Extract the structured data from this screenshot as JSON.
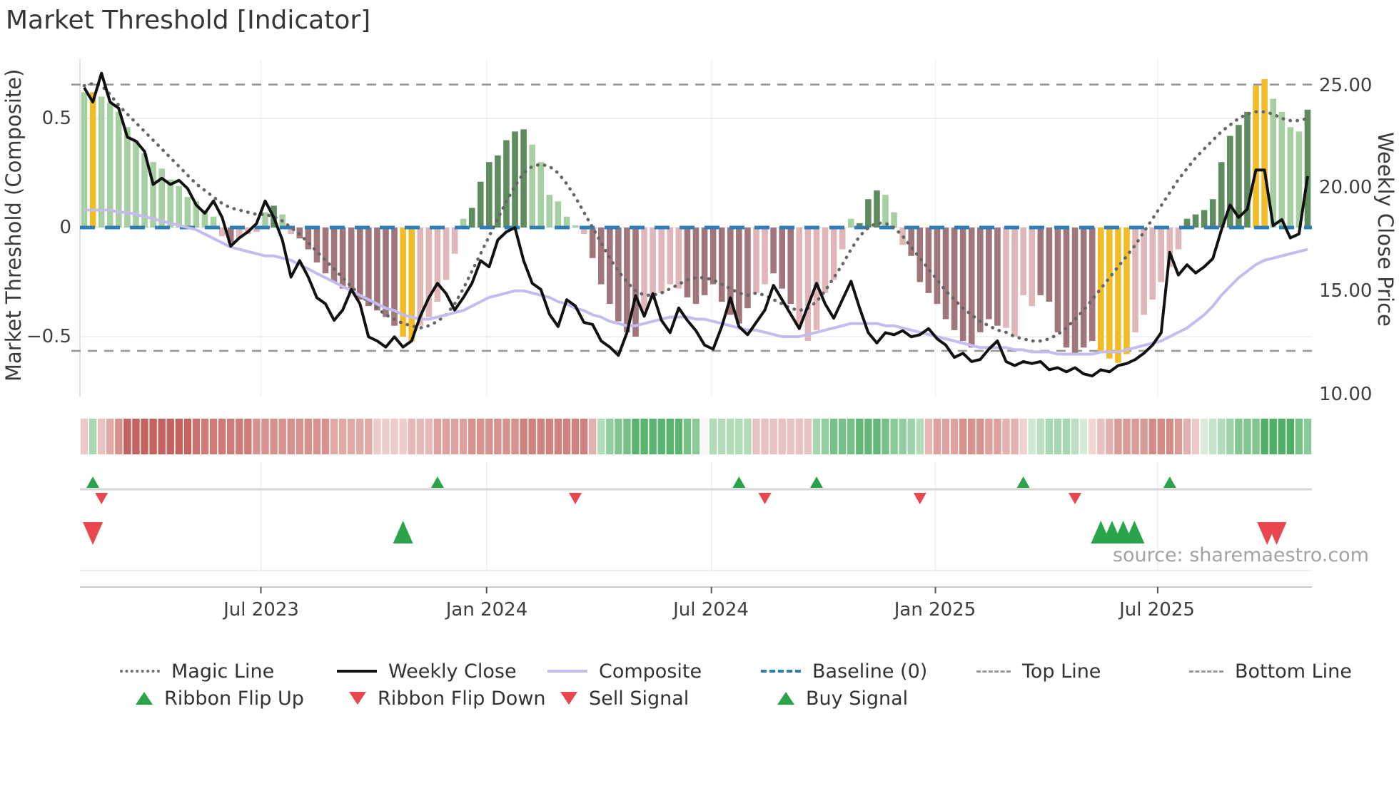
{
  "title": "Market Threshold [Indicator]",
  "source_note": "source: sharemaestro.com",
  "axes": {
    "left_label": "Market Threshold (Composite)",
    "right_label": "Weekly Close Price",
    "left_ticks": [
      "0.5",
      "0",
      "−0.5"
    ],
    "right_ticks": [
      "25.00",
      "20.00",
      "15.00",
      "10.00"
    ],
    "x_ticks": [
      "Jul 2023",
      "Jan 2024",
      "Jul 2024",
      "Jan 2025",
      "Jul 2025"
    ]
  },
  "legend": {
    "row1": [
      {
        "label": "Magic Line"
      },
      {
        "label": "Weekly Close"
      },
      {
        "label": "Composite"
      },
      {
        "label": "Baseline (0)"
      },
      {
        "label": "Top Line"
      },
      {
        "label": "Bottom Line"
      }
    ],
    "row2": [
      {
        "label": "Ribbon Flip Up"
      },
      {
        "label": "Ribbon Flip Down"
      },
      {
        "label": "Sell Signal"
      },
      {
        "label": "Buy Signal"
      }
    ]
  },
  "chart_data": {
    "type": "bar",
    "n_weeks": 143,
    "x_tick_labels": [
      "Jul 2023",
      "Jan 2024",
      "Jul 2024",
      "Jan 2025",
      "Jul 2025"
    ],
    "x_tick_weeks": [
      20.5,
      46.7,
      72.8,
      98.8,
      124.6
    ],
    "left_tick_values": [
      0.5,
      0,
      -0.5
    ],
    "right_tick_values": [
      25,
      20,
      15,
      10
    ],
    "baseline": 0,
    "top_line": 0.655,
    "bottom_line": -0.565,
    "palette": {
      "lg": "#a7d0a2",
      "dg": "#5e8c5e",
      "y": "#f0bd28",
      "lp": "#e1b6b8",
      "mv": "#a1767b",
      "magic_line": "#666666",
      "weekly_close": "#111111",
      "composite": "#c4bcee",
      "baseline": "#2e7eb8",
      "top_bottom_line": "#999999",
      "signal_green": "#2aa34b",
      "signal_red": "#e84750"
    },
    "bar_values": [
      0.62,
      0.62,
      0.6,
      0.57,
      0.53,
      0.46,
      0.4,
      0.34,
      0.3,
      0.27,
      0.22,
      0.19,
      0.14,
      0.12,
      0.08,
      0.05,
      -0.04,
      -0.07,
      -0.05,
      -0.03,
      -0.02,
      0.07,
      0.1,
      0.06,
      -0.03,
      -0.05,
      -0.1,
      -0.16,
      -0.21,
      -0.25,
      -0.28,
      -0.3,
      -0.33,
      -0.36,
      -0.38,
      -0.41,
      -0.45,
      -0.5,
      -0.52,
      -0.45,
      -0.41,
      -0.34,
      -0.24,
      -0.12,
      0.04,
      0.09,
      0.21,
      0.3,
      0.33,
      0.4,
      0.44,
      0.45,
      0.38,
      0.3,
      0.15,
      0.12,
      0.05,
      0.01,
      -0.03,
      -0.14,
      -0.26,
      -0.35,
      -0.43,
      -0.48,
      -0.5,
      -0.38,
      -0.33,
      -0.3,
      -0.26,
      -0.28,
      -0.32,
      -0.35,
      -0.31,
      -0.26,
      -0.34,
      -0.4,
      -0.44,
      -0.37,
      -0.3,
      -0.26,
      -0.21,
      -0.28,
      -0.35,
      -0.45,
      -0.52,
      -0.47,
      -0.3,
      -0.24,
      -0.1,
      0.04,
      0.02,
      0.13,
      0.17,
      0.15,
      0.07,
      -0.08,
      -0.13,
      -0.25,
      -0.3,
      -0.35,
      -0.42,
      -0.47,
      -0.52,
      -0.55,
      -0.48,
      -0.42,
      -0.45,
      -0.46,
      -0.5,
      -0.31,
      -0.36,
      -0.31,
      -0.34,
      -0.48,
      -0.55,
      -0.58,
      -0.55,
      -0.52,
      -0.57,
      -0.6,
      -0.62,
      -0.58,
      -0.48,
      -0.4,
      -0.33,
      -0.25,
      -0.18,
      -0.1,
      0.04,
      0.06,
      0.08,
      0.13,
      0.3,
      0.42,
      0.47,
      0.53,
      0.65,
      0.68,
      0.59,
      0.53,
      0.46,
      0.44,
      0.54
    ],
    "bar_colors": [
      "lg",
      "y",
      "lg",
      "lg",
      "lg",
      "lg",
      "lg",
      "lg",
      "lg",
      "lg",
      "lg",
      "lg",
      "lg",
      "lg",
      "lg",
      "lg",
      "lp",
      "mv",
      "lp",
      "lp",
      "lp",
      "lg",
      "dg",
      "lg",
      "lp",
      "mv",
      "mv",
      "mv",
      "mv",
      "mv",
      "mv",
      "mv",
      "mv",
      "mv",
      "mv",
      "mv",
      "mv",
      "y",
      "y",
      "lp",
      "lp",
      "lp",
      "lp",
      "lp",
      "lg",
      "dg",
      "dg",
      "dg",
      "dg",
      "dg",
      "dg",
      "dg",
      "lg",
      "lg",
      "lg",
      "lg",
      "lg",
      "lg",
      "lp",
      "mv",
      "mv",
      "mv",
      "mv",
      "mv",
      "mv",
      "lp",
      "lp",
      "lp",
      "lp",
      "lp",
      "mv",
      "mv",
      "mv",
      "mv",
      "mv",
      "mv",
      "mv",
      "mv",
      "lp",
      "lp",
      "mv",
      "mv",
      "mv",
      "lp",
      "lp",
      "lp",
      "lp",
      "lp",
      "lp",
      "lg",
      "dg",
      "dg",
      "dg",
      "lg",
      "lg",
      "lp",
      "mv",
      "mv",
      "mv",
      "mv",
      "mv",
      "mv",
      "mv",
      "mv",
      "mv",
      "mv",
      "mv",
      "lp",
      "lp",
      "lp",
      "lp",
      "mv",
      "mv",
      "mv",
      "mv",
      "mv",
      "mv",
      "mv",
      "y",
      "y",
      "y",
      "y",
      "lp",
      "lp",
      "lp",
      "lp",
      "lp",
      "lp",
      "dg",
      "dg",
      "dg",
      "dg",
      "dg",
      "dg",
      "dg",
      "dg",
      "y",
      "y",
      "lg",
      "lg",
      "lg",
      "lg",
      "dg"
    ],
    "weekly_close": [
      24.9,
      24.2,
      25.6,
      24.2,
      23.9,
      22.5,
      22.3,
      21.8,
      20.2,
      20.5,
      20.2,
      20.4,
      20.0,
      19.2,
      18.8,
      19.4,
      18.6,
      17.2,
      17.6,
      17.9,
      18.3,
      19.4,
      18.6,
      17.5,
      15.7,
      16.5,
      15.7,
      14.7,
      14.4,
      13.6,
      14.1,
      15.1,
      14.4,
      12.8,
      12.6,
      12.3,
      12.8,
      12.3,
      12.6,
      13.8,
      14.7,
      15.4,
      14.9,
      14.1,
      14.7,
      15.4,
      16.5,
      16.2,
      17.5,
      17.9,
      18.1,
      16.5,
      15.4,
      15.1,
      13.9,
      13.3,
      14.6,
      14.3,
      13.5,
      13.4,
      12.6,
      12.3,
      11.9,
      13.0,
      14.8,
      13.8,
      14.9,
      13.6,
      13.0,
      14.2,
      13.6,
      13.1,
      12.4,
      12.2,
      13.3,
      14.7,
      13.3,
      12.9,
      13.5,
      14.1,
      15.3,
      14.6,
      13.9,
      13.2,
      14.3,
      15.4,
      14.4,
      13.7,
      14.6,
      15.5,
      14.2,
      13.0,
      12.5,
      13.0,
      12.9,
      13.1,
      12.8,
      12.9,
      13.2,
      12.7,
      12.4,
      11.8,
      12.0,
      11.6,
      11.7,
      12.2,
      12.6,
      11.6,
      11.4,
      11.6,
      11.5,
      11.6,
      11.2,
      11.3,
      11.1,
      11.3,
      11.0,
      10.9,
      11.2,
      11.1,
      11.4,
      11.5,
      11.7,
      12.0,
      12.4,
      13.0,
      16.9,
      15.8,
      16.3,
      15.9,
      16.2,
      16.6,
      18.0,
      19.2,
      18.6,
      19.0,
      20.9,
      20.9,
      18.2,
      18.5,
      17.6,
      17.8,
      20.6
    ],
    "composite": [
      0.08,
      0.08,
      0.08,
      0.08,
      0.07,
      0.07,
      0.06,
      0.05,
      0.04,
      0.03,
      0.02,
      0.01,
      0.0,
      -0.01,
      -0.03,
      -0.05,
      -0.07,
      -0.09,
      -0.1,
      -0.11,
      -0.12,
      -0.13,
      -0.13,
      -0.14,
      -0.15,
      -0.17,
      -0.19,
      -0.21,
      -0.23,
      -0.25,
      -0.27,
      -0.29,
      -0.31,
      -0.33,
      -0.35,
      -0.37,
      -0.38,
      -0.4,
      -0.41,
      -0.42,
      -0.42,
      -0.41,
      -0.4,
      -0.39,
      -0.38,
      -0.36,
      -0.34,
      -0.32,
      -0.31,
      -0.3,
      -0.29,
      -0.29,
      -0.3,
      -0.31,
      -0.32,
      -0.34,
      -0.35,
      -0.37,
      -0.38,
      -0.4,
      -0.41,
      -0.43,
      -0.44,
      -0.45,
      -0.45,
      -0.44,
      -0.43,
      -0.42,
      -0.41,
      -0.41,
      -0.41,
      -0.42,
      -0.42,
      -0.43,
      -0.44,
      -0.45,
      -0.46,
      -0.47,
      -0.47,
      -0.48,
      -0.49,
      -0.5,
      -0.5,
      -0.5,
      -0.49,
      -0.48,
      -0.47,
      -0.46,
      -0.45,
      -0.44,
      -0.44,
      -0.44,
      -0.44,
      -0.45,
      -0.45,
      -0.46,
      -0.47,
      -0.48,
      -0.49,
      -0.5,
      -0.51,
      -0.52,
      -0.53,
      -0.54,
      -0.55,
      -0.55,
      -0.55,
      -0.55,
      -0.56,
      -0.56,
      -0.57,
      -0.57,
      -0.57,
      -0.58,
      -0.58,
      -0.58,
      -0.58,
      -0.58,
      -0.57,
      -0.57,
      -0.57,
      -0.56,
      -0.55,
      -0.54,
      -0.53,
      -0.52,
      -0.5,
      -0.48,
      -0.46,
      -0.43,
      -0.4,
      -0.36,
      -0.31,
      -0.27,
      -0.23,
      -0.2,
      -0.17,
      -0.15,
      -0.14,
      -0.13,
      -0.12,
      -0.11,
      -0.1
    ],
    "magic_line": [
      0.65,
      0.66,
      0.65,
      0.61,
      0.56,
      0.52,
      0.48,
      0.44,
      0.4,
      0.36,
      0.32,
      0.28,
      0.24,
      0.2,
      0.17,
      0.14,
      0.11,
      0.09,
      0.08,
      0.07,
      0.06,
      0.06,
      0.05,
      0.03,
      0.0,
      -0.03,
      -0.07,
      -0.11,
      -0.15,
      -0.19,
      -0.23,
      -0.27,
      -0.31,
      -0.34,
      -0.37,
      -0.4,
      -0.42,
      -0.44,
      -0.45,
      -0.46,
      -0.45,
      -0.43,
      -0.4,
      -0.35,
      -0.28,
      -0.2,
      -0.12,
      -0.04,
      0.04,
      0.12,
      0.19,
      0.25,
      0.28,
      0.29,
      0.28,
      0.25,
      0.2,
      0.14,
      0.07,
      0.0,
      -0.07,
      -0.14,
      -0.2,
      -0.25,
      -0.29,
      -0.31,
      -0.31,
      -0.3,
      -0.28,
      -0.26,
      -0.24,
      -0.23,
      -0.23,
      -0.24,
      -0.26,
      -0.28,
      -0.3,
      -0.31,
      -0.3,
      -0.31,
      -0.33,
      -0.35,
      -0.37,
      -0.38,
      -0.37,
      -0.34,
      -0.29,
      -0.23,
      -0.17,
      -0.1,
      -0.04,
      0.0,
      0.02,
      0.02,
      0.0,
      -0.04,
      -0.09,
      -0.14,
      -0.19,
      -0.24,
      -0.29,
      -0.33,
      -0.37,
      -0.4,
      -0.43,
      -0.45,
      -0.47,
      -0.48,
      -0.5,
      -0.51,
      -0.52,
      -0.52,
      -0.51,
      -0.49,
      -0.46,
      -0.42,
      -0.38,
      -0.33,
      -0.28,
      -0.23,
      -0.18,
      -0.13,
      -0.08,
      -0.02,
      0.04,
      0.1,
      0.16,
      0.22,
      0.27,
      0.32,
      0.36,
      0.4,
      0.44,
      0.47,
      0.5,
      0.52,
      0.53,
      0.53,
      0.52,
      0.5,
      0.49,
      0.49,
      0.5
    ],
    "ribbon": [
      -0.2,
      0.35,
      -0.25,
      -0.4,
      -0.55,
      -0.85,
      -0.85,
      -0.85,
      -0.85,
      -0.85,
      -0.85,
      -0.85,
      -0.85,
      -0.75,
      -0.7,
      -0.7,
      -0.7,
      -0.7,
      -0.7,
      -0.7,
      -0.55,
      -0.55,
      -0.55,
      -0.55,
      -0.55,
      -0.55,
      -0.55,
      -0.55,
      -0.55,
      -0.4,
      -0.4,
      -0.4,
      -0.4,
      -0.4,
      -0.18,
      -0.18,
      -0.18,
      -0.18,
      -0.3,
      -0.3,
      -0.3,
      -0.45,
      -0.45,
      -0.45,
      -0.45,
      -0.55,
      -0.55,
      -0.55,
      -0.55,
      -0.55,
      -0.55,
      -0.65,
      -0.65,
      -0.65,
      -0.65,
      -0.65,
      -0.65,
      -0.65,
      -0.65,
      -0.35,
      0.3,
      0.45,
      0.55,
      0.6,
      0.75,
      0.75,
      0.75,
      0.75,
      0.75,
      0.75,
      0.6,
      0.5,
      0.0,
      0.3,
      0.3,
      0.3,
      0.3,
      0.3,
      -0.25,
      -0.25,
      -0.25,
      -0.25,
      -0.25,
      -0.25,
      -0.25,
      0.35,
      0.45,
      0.6,
      0.6,
      0.6,
      0.7,
      0.7,
      0.7,
      0.6,
      0.5,
      0.45,
      0.4,
      0.3,
      -0.3,
      -0.45,
      -0.45,
      -0.45,
      -0.55,
      -0.55,
      -0.55,
      -0.45,
      -0.45,
      -0.35,
      -0.35,
      -0.15,
      0.15,
      0.25,
      0.35,
      0.35,
      0.35,
      0.25,
      0.12,
      -0.12,
      -0.25,
      -0.35,
      -0.5,
      -0.5,
      -0.5,
      -0.5,
      -0.6,
      -0.6,
      -0.6,
      -0.5,
      -0.35,
      -0.2,
      0.1,
      0.2,
      0.3,
      0.4,
      0.55,
      0.55,
      0.55,
      0.8,
      0.8,
      0.8,
      0.8,
      0.6,
      0.5
    ],
    "signals": {
      "ribbon_flip_up_weeks": [
        1,
        41,
        76,
        85,
        109,
        126
      ],
      "ribbon_flip_down_weeks": [
        2,
        57,
        79,
        97,
        115
      ],
      "sell_signal_weeks": [
        1,
        137.3,
        138.4
      ],
      "buy_signal_weeks": [
        37,
        118,
        119.3,
        120.6,
        121.9
      ]
    }
  }
}
